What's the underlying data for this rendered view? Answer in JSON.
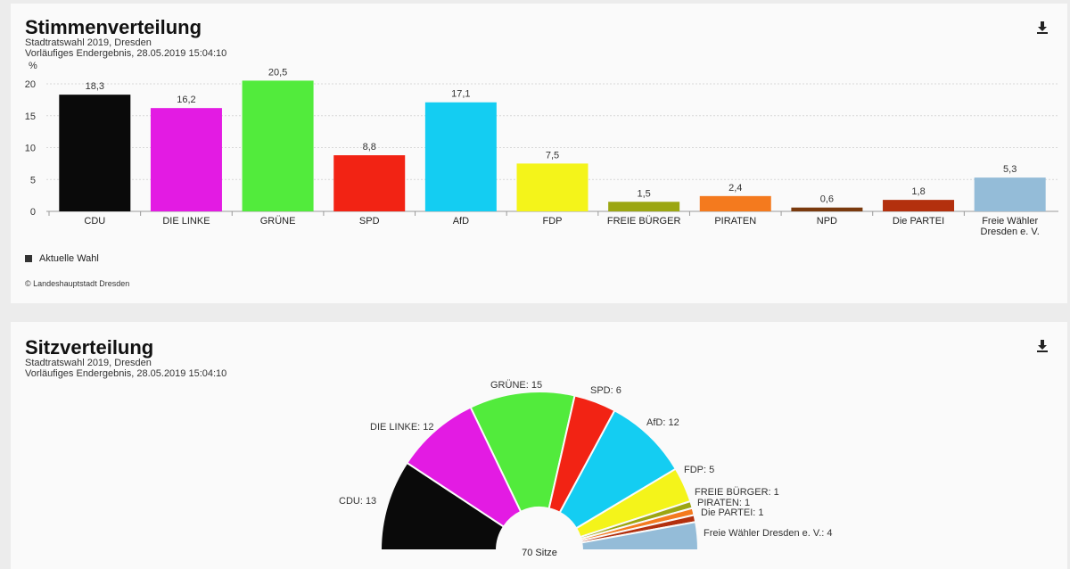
{
  "votes_panel": {
    "title": "Stimmenverteilung",
    "subtitle1": "Stadtratswahl 2019, Dresden",
    "subtitle2": "Vorläufiges Endergebnis, 28.05.2019 15:04:10",
    "legend_label": "Aktuelle Wahl",
    "copyright": "© Landeshauptstadt Dresden",
    "download_icon": "download-icon"
  },
  "seats_panel": {
    "title": "Sitzverteilung",
    "subtitle1": "Stadtratswahl 2019, Dresden",
    "subtitle2": "Vorläufiges Endergebnis, 28.05.2019 15:04:10",
    "download_icon": "download-icon"
  },
  "chart_data": [
    {
      "type": "bar",
      "ylabel": "%",
      "ylim": [
        0,
        22
      ],
      "yticks": [
        0,
        5,
        10,
        15,
        20
      ],
      "grid": true,
      "categories": [
        "CDU",
        "DIE LINKE",
        "GRÜNE",
        "SPD",
        "AfD",
        "FDP",
        "FREIE BÜRGER",
        "PIRATEN",
        "NPD",
        "Die PARTEI",
        "Freie Wähler Dresden e. V."
      ],
      "values": [
        18.3,
        16.2,
        20.5,
        8.8,
        17.1,
        7.5,
        1.5,
        2.4,
        0.6,
        1.8,
        5.3
      ],
      "value_labels": [
        "18,3",
        "16,2",
        "20,5",
        "8,8",
        "17,1",
        "7,5",
        "1,5",
        "2,4",
        "0,6",
        "1,8",
        "5,3"
      ],
      "colors": [
        "#0a0a0a",
        "#e31be3",
        "#52eb3c",
        "#f22314",
        "#14cdf2",
        "#f4f41a",
        "#9ba612",
        "#f47a1e",
        "#7a3a0e",
        "#b3300e",
        "#94bcd8"
      ],
      "series": [
        {
          "name": "Aktuelle Wahl",
          "values": [
            18.3,
            16.2,
            20.5,
            8.8,
            17.1,
            7.5,
            1.5,
            2.4,
            0.6,
            1.8,
            5.3
          ]
        }
      ]
    },
    {
      "type": "pie",
      "variant": "semicircle",
      "center_label": "70 Sitze",
      "total": 70,
      "slices": [
        {
          "label": "CDU",
          "value": 13,
          "text": "CDU: 13",
          "color": "#0a0a0a"
        },
        {
          "label": "DIE LINKE",
          "value": 12,
          "text": "DIE LINKE: 12",
          "color": "#e31be3"
        },
        {
          "label": "GRÜNE",
          "value": 15,
          "text": "GRÜNE: 15",
          "color": "#52eb3c"
        },
        {
          "label": "SPD",
          "value": 6,
          "text": "SPD: 6",
          "color": "#f22314"
        },
        {
          "label": "AfD",
          "value": 12,
          "text": "AfD: 12",
          "color": "#14cdf2"
        },
        {
          "label": "FDP",
          "value": 5,
          "text": "FDP: 5",
          "color": "#f4f41a"
        },
        {
          "label": "FREIE BÜRGER",
          "value": 1,
          "text": "FREIE BÜRGER: 1",
          "color": "#9ba612"
        },
        {
          "label": "PIRATEN",
          "value": 1,
          "text": "PIRATEN: 1",
          "color": "#f47a1e"
        },
        {
          "label": "Die PARTEI",
          "value": 1,
          "text": "Die PARTEI: 1",
          "color": "#b3300e"
        },
        {
          "label": "Freie Wähler Dresden e. V.",
          "value": 4,
          "text": "Freie Wähler Dresden e. V.: 4",
          "color": "#94bcd8"
        }
      ]
    }
  ]
}
